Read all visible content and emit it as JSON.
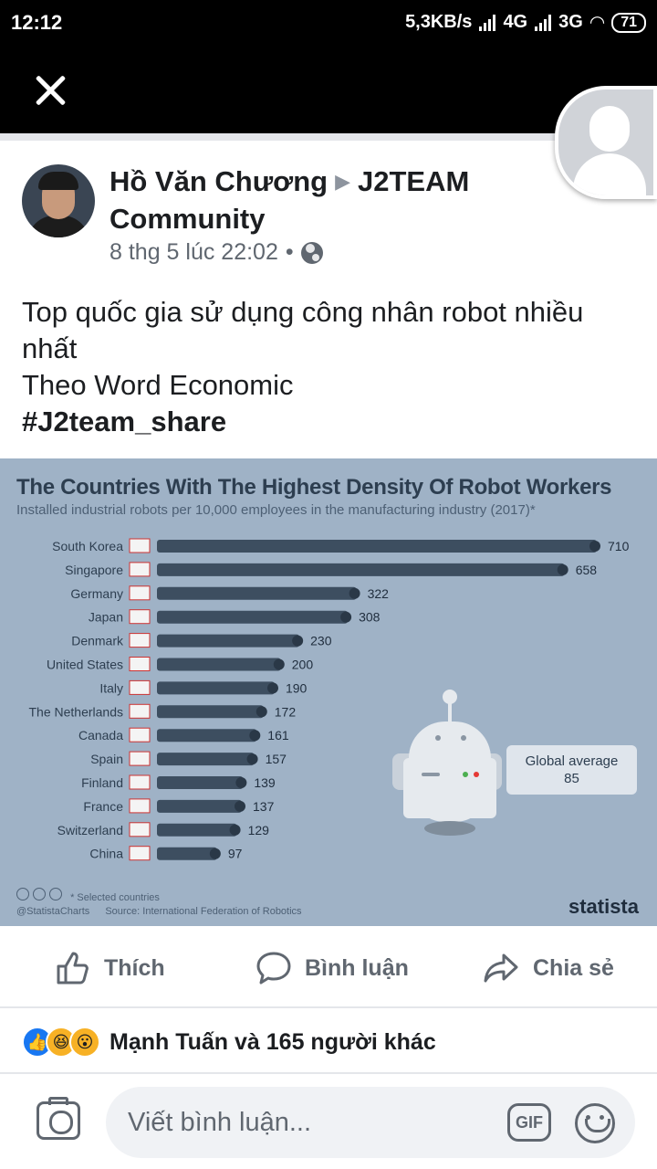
{
  "status_bar": {
    "time": "12:12",
    "network_speed": "5,3KB/s",
    "network_1": "4G",
    "network_2": "3G",
    "battery": "71"
  },
  "post": {
    "author": "Hồ Văn Chương",
    "group": "J2TEAM Community",
    "timestamp": "8 thg 5 lúc 22:02",
    "separator": "•",
    "text_lines": [
      "Top quốc gia sử dụng công nhân robot nhiều nhất",
      "Theo Word Economic"
    ],
    "hashtag": "#J2team_share"
  },
  "infographic": {
    "global_avg_label": "Global average",
    "global_avg_value": "85",
    "note": "* Selected countries",
    "source": "Source: International Federation of Robotics",
    "handle": "@StatistaCharts",
    "brand": "statista"
  },
  "chart_data": {
    "type": "bar",
    "title": "The Countries With The Highest Density Of Robot Workers",
    "subtitle": "Installed industrial robots per 10,000 employees in the manufacturing industry (2017)*",
    "categories": [
      "South Korea",
      "Singapore",
      "Germany",
      "Japan",
      "Denmark",
      "United States",
      "Italy",
      "The Netherlands",
      "Canada",
      "Spain",
      "Finland",
      "France",
      "Switzerland",
      "China"
    ],
    "values": [
      710,
      658,
      322,
      308,
      230,
      200,
      190,
      172,
      161,
      157,
      139,
      137,
      129,
      97
    ],
    "orientation": "horizontal",
    "xlim": [
      0,
      710
    ]
  },
  "actions": {
    "like": "Thích",
    "comment": "Bình luận",
    "share": "Chia sẻ"
  },
  "reactions": {
    "summary": "Mạnh Tuấn và 165 người khác"
  },
  "composer": {
    "placeholder": "Viết bình luận...",
    "gif": "GIF"
  },
  "colors": {
    "bar": "#3d4e60",
    "info_bg": "#9fb2c6",
    "accent": "#1877f2"
  }
}
